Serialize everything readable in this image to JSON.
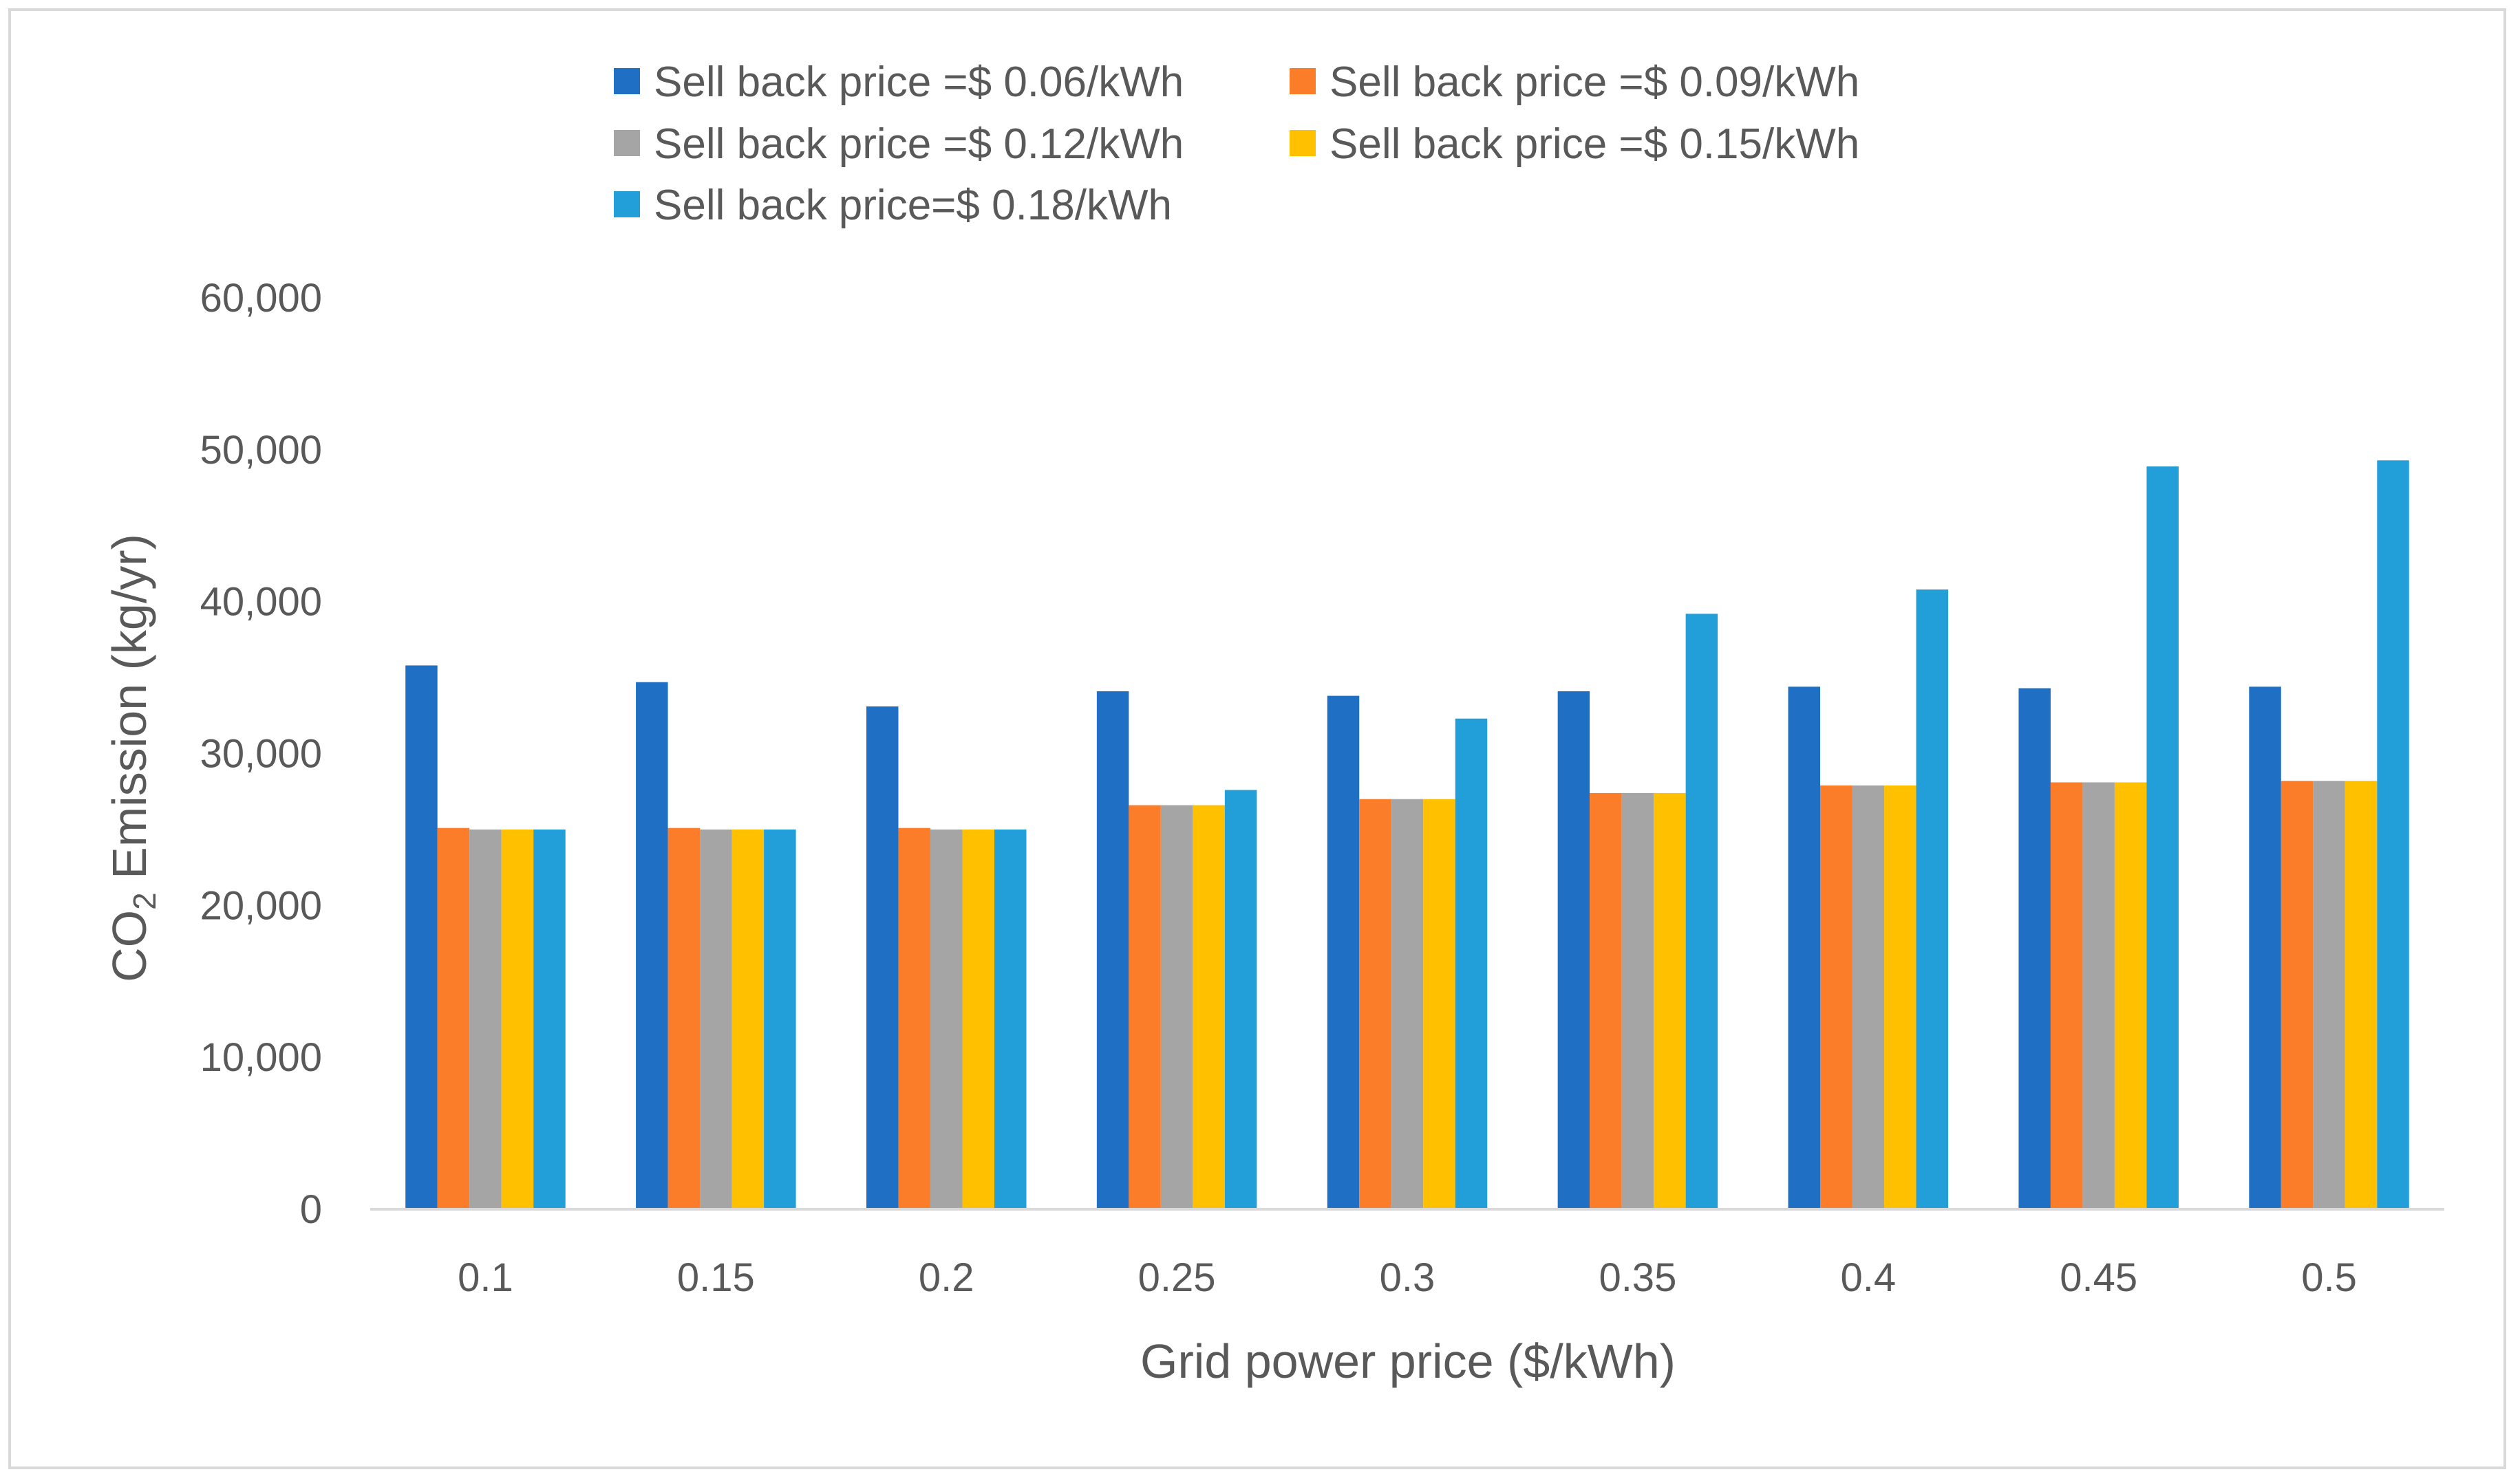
{
  "chart_data": {
    "type": "bar",
    "title": "",
    "xlabel": "Grid power price ($/kWh)",
    "ylabel": {
      "main": "CO",
      "subscript": "2",
      "rest": " Emission (kg/yr)"
    },
    "categories": [
      "0.1",
      "0.15",
      "0.2",
      "0.25",
      "0.3",
      "0.35",
      "0.4",
      "0.45",
      "0.5"
    ],
    "ylim": [
      0,
      60000
    ],
    "yticks": [
      0,
      10000,
      20000,
      30000,
      40000,
      50000,
      60000
    ],
    "ytick_labels": [
      "0",
      "10,000",
      "20,000",
      "30,000",
      "40,000",
      "50,000",
      "60,000"
    ],
    "grid": false,
    "legend_position": "top-center",
    "series": [
      {
        "name": "Sell back price =$ 0.06/kWh",
        "color": "#1f6fc5",
        "values": [
          35800,
          34700,
          33100,
          34100,
          33800,
          34100,
          34400,
          34300,
          34400
        ]
      },
      {
        "name": "Sell back price =$ 0.09/kWh",
        "color": "#fb7d2a",
        "values": [
          25100,
          25100,
          25100,
          26600,
          27000,
          27400,
          27900,
          28100,
          28200
        ]
      },
      {
        "name": "Sell back price =$ 0.12/kWh",
        "color": "#a5a5a5",
        "values": [
          25000,
          25000,
          25000,
          26600,
          27000,
          27400,
          27900,
          28100,
          28200
        ]
      },
      {
        "name": "Sell back price =$ 0.15/kWh",
        "color": "#ffc000",
        "values": [
          25000,
          25000,
          25000,
          26600,
          27000,
          27400,
          27900,
          28100,
          28200
        ]
      },
      {
        "name": "Sell back price=$ 0.18/kWh",
        "color": "#229ed9",
        "values": [
          25000,
          25000,
          25000,
          27600,
          32300,
          39200,
          40800,
          48900,
          49300
        ]
      }
    ]
  }
}
